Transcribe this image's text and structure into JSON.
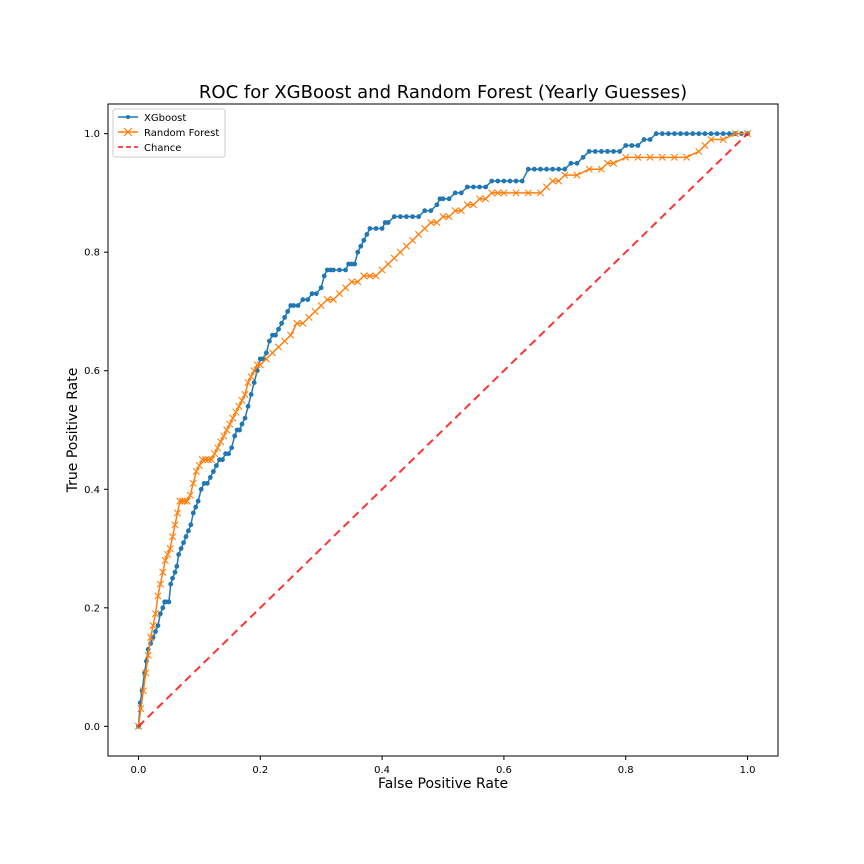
{
  "chart_data": {
    "type": "line",
    "title": "ROC for XGBoost and Random Forest (Yearly Guesses)",
    "xlabel": "False Positive Rate",
    "ylabel": "True Positive Rate",
    "xlim": [
      -0.05,
      1.05
    ],
    "ylim": [
      -0.05,
      1.05
    ],
    "xticks": [
      "0.0",
      "0.2",
      "0.4",
      "0.6",
      "0.8",
      "1.0"
    ],
    "yticks": [
      "0.0",
      "0.2",
      "0.4",
      "0.6",
      "0.8",
      "1.0"
    ],
    "grid": false,
    "legend_position": "top-left",
    "series": [
      {
        "name": "XGboost",
        "color": "#1f77b4",
        "marker": "dot",
        "x": [
          0.0,
          0.003,
          0.006,
          0.01,
          0.013,
          0.016,
          0.02,
          0.024,
          0.028,
          0.032,
          0.036,
          0.04,
          0.043,
          0.046,
          0.05,
          0.053,
          0.056,
          0.06,
          0.063,
          0.066,
          0.07,
          0.074,
          0.078,
          0.082,
          0.086,
          0.09,
          0.094,
          0.098,
          0.103,
          0.108,
          0.113,
          0.118,
          0.123,
          0.128,
          0.133,
          0.138,
          0.143,
          0.148,
          0.153,
          0.158,
          0.162,
          0.166,
          0.17,
          0.175,
          0.18,
          0.185,
          0.19,
          0.195,
          0.2,
          0.205,
          0.21,
          0.215,
          0.22,
          0.225,
          0.23,
          0.235,
          0.24,
          0.245,
          0.25,
          0.255,
          0.262,
          0.27,
          0.278,
          0.285,
          0.292,
          0.3,
          0.305,
          0.31,
          0.315,
          0.32,
          0.33,
          0.34,
          0.345,
          0.35,
          0.355,
          0.36,
          0.365,
          0.37,
          0.375,
          0.38,
          0.39,
          0.4,
          0.405,
          0.41,
          0.42,
          0.43,
          0.44,
          0.45,
          0.46,
          0.47,
          0.48,
          0.49,
          0.495,
          0.5,
          0.51,
          0.52,
          0.53,
          0.54,
          0.55,
          0.56,
          0.57,
          0.58,
          0.59,
          0.6,
          0.61,
          0.62,
          0.63,
          0.64,
          0.65,
          0.66,
          0.67,
          0.68,
          0.69,
          0.7,
          0.71,
          0.72,
          0.73,
          0.74,
          0.75,
          0.76,
          0.77,
          0.78,
          0.79,
          0.8,
          0.81,
          0.82,
          0.83,
          0.84,
          0.85,
          0.86,
          0.87,
          0.88,
          0.89,
          0.9,
          0.91,
          0.92,
          0.93,
          0.94,
          0.95,
          0.96,
          0.97,
          0.98,
          0.99,
          1.0
        ],
        "y": [
          0.0,
          0.04,
          0.06,
          0.09,
          0.11,
          0.13,
          0.14,
          0.15,
          0.16,
          0.17,
          0.19,
          0.2,
          0.21,
          0.21,
          0.21,
          0.24,
          0.25,
          0.26,
          0.27,
          0.29,
          0.3,
          0.31,
          0.32,
          0.33,
          0.34,
          0.36,
          0.37,
          0.38,
          0.4,
          0.41,
          0.41,
          0.42,
          0.43,
          0.44,
          0.45,
          0.45,
          0.46,
          0.46,
          0.47,
          0.49,
          0.5,
          0.5,
          0.51,
          0.52,
          0.54,
          0.56,
          0.58,
          0.6,
          0.62,
          0.62,
          0.63,
          0.65,
          0.66,
          0.66,
          0.67,
          0.68,
          0.69,
          0.7,
          0.71,
          0.71,
          0.71,
          0.72,
          0.72,
          0.73,
          0.73,
          0.74,
          0.76,
          0.77,
          0.77,
          0.77,
          0.77,
          0.77,
          0.78,
          0.78,
          0.78,
          0.8,
          0.81,
          0.82,
          0.83,
          0.84,
          0.84,
          0.84,
          0.85,
          0.85,
          0.86,
          0.86,
          0.86,
          0.86,
          0.86,
          0.87,
          0.87,
          0.88,
          0.89,
          0.89,
          0.89,
          0.9,
          0.9,
          0.91,
          0.91,
          0.91,
          0.91,
          0.92,
          0.92,
          0.92,
          0.92,
          0.92,
          0.92,
          0.94,
          0.94,
          0.94,
          0.94,
          0.94,
          0.94,
          0.94,
          0.95,
          0.95,
          0.96,
          0.97,
          0.97,
          0.97,
          0.97,
          0.97,
          0.97,
          0.98,
          0.98,
          0.98,
          0.99,
          0.99,
          1.0,
          1.0,
          1.0,
          1.0,
          1.0,
          1.0,
          1.0,
          1.0,
          1.0,
          1.0,
          1.0,
          1.0,
          1.0,
          1.0,
          1.0,
          1.0
        ]
      },
      {
        "name": "Random Forest",
        "color": "#ff7f0e",
        "marker": "x",
        "x": [
          0.0,
          0.004,
          0.008,
          0.012,
          0.016,
          0.02,
          0.024,
          0.028,
          0.032,
          0.036,
          0.04,
          0.044,
          0.048,
          0.052,
          0.056,
          0.06,
          0.064,
          0.068,
          0.072,
          0.076,
          0.08,
          0.085,
          0.09,
          0.095,
          0.1,
          0.105,
          0.11,
          0.115,
          0.12,
          0.125,
          0.13,
          0.135,
          0.14,
          0.145,
          0.15,
          0.155,
          0.16,
          0.165,
          0.17,
          0.175,
          0.18,
          0.185,
          0.19,
          0.195,
          0.2,
          0.21,
          0.22,
          0.23,
          0.24,
          0.25,
          0.26,
          0.27,
          0.28,
          0.29,
          0.3,
          0.31,
          0.32,
          0.33,
          0.34,
          0.35,
          0.36,
          0.37,
          0.38,
          0.39,
          0.4,
          0.41,
          0.42,
          0.43,
          0.44,
          0.45,
          0.46,
          0.47,
          0.48,
          0.49,
          0.5,
          0.51,
          0.52,
          0.53,
          0.54,
          0.55,
          0.56,
          0.57,
          0.58,
          0.59,
          0.6,
          0.62,
          0.64,
          0.66,
          0.67,
          0.68,
          0.69,
          0.7,
          0.72,
          0.74,
          0.76,
          0.77,
          0.78,
          0.8,
          0.82,
          0.84,
          0.86,
          0.88,
          0.9,
          0.92,
          0.93,
          0.94,
          0.96,
          0.98,
          1.0
        ],
        "y": [
          0.0,
          0.03,
          0.06,
          0.09,
          0.12,
          0.15,
          0.17,
          0.19,
          0.22,
          0.24,
          0.26,
          0.28,
          0.29,
          0.3,
          0.32,
          0.34,
          0.36,
          0.38,
          0.38,
          0.38,
          0.38,
          0.39,
          0.41,
          0.43,
          0.44,
          0.45,
          0.45,
          0.45,
          0.45,
          0.46,
          0.47,
          0.48,
          0.49,
          0.5,
          0.51,
          0.52,
          0.53,
          0.54,
          0.55,
          0.56,
          0.58,
          0.59,
          0.6,
          0.61,
          0.61,
          0.62,
          0.63,
          0.64,
          0.65,
          0.66,
          0.68,
          0.68,
          0.69,
          0.7,
          0.71,
          0.72,
          0.72,
          0.73,
          0.74,
          0.75,
          0.75,
          0.76,
          0.76,
          0.76,
          0.77,
          0.78,
          0.79,
          0.8,
          0.81,
          0.82,
          0.83,
          0.84,
          0.85,
          0.85,
          0.86,
          0.86,
          0.87,
          0.87,
          0.88,
          0.88,
          0.89,
          0.89,
          0.9,
          0.9,
          0.9,
          0.9,
          0.9,
          0.9,
          0.91,
          0.92,
          0.92,
          0.93,
          0.93,
          0.94,
          0.94,
          0.95,
          0.95,
          0.96,
          0.96,
          0.96,
          0.96,
          0.96,
          0.96,
          0.97,
          0.98,
          0.99,
          0.99,
          1.0,
          1.0
        ]
      },
      {
        "name": "Chance",
        "color": "#ff0000",
        "marker": "none",
        "linestyle": "dashed",
        "x": [
          0.0,
          1.0
        ],
        "y": [
          0.0,
          1.0
        ]
      }
    ]
  }
}
